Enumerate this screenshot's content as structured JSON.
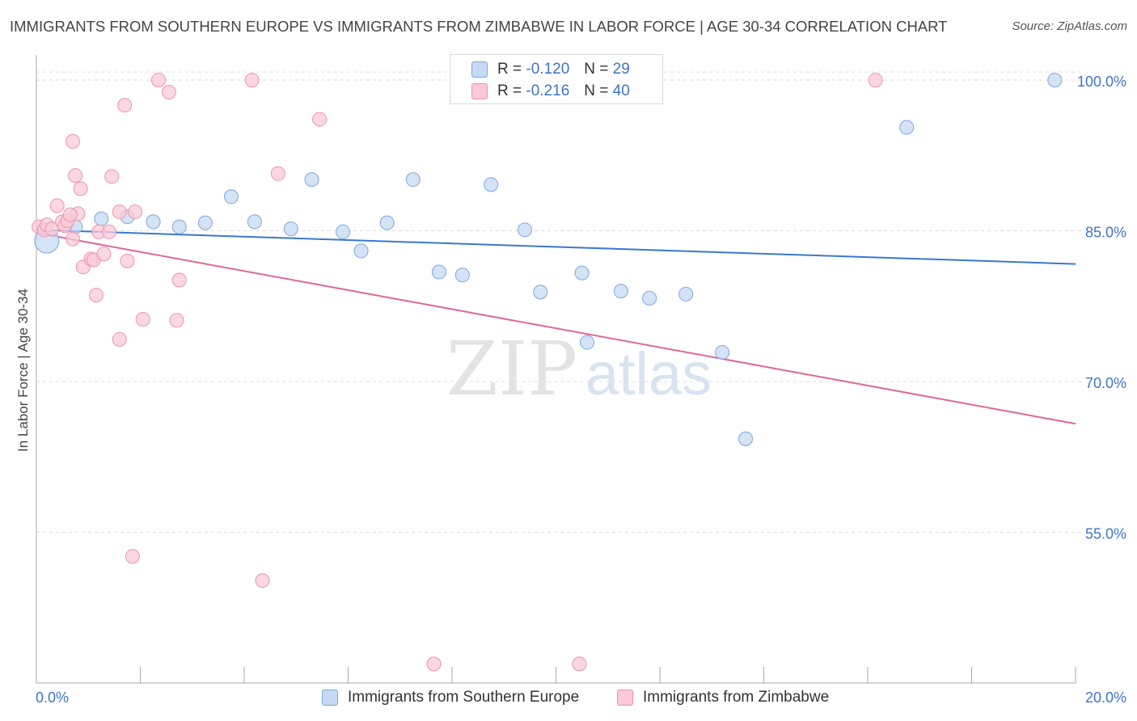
{
  "header": {
    "title": "IMMIGRANTS FROM SOUTHERN EUROPE VS IMMIGRANTS FROM ZIMBABWE IN LABOR FORCE | AGE 30-34 CORRELATION CHART",
    "source": "Source: ZipAtlas.com"
  },
  "legend": {
    "series1": {
      "r_label": "R =",
      "r_value": "-0.120",
      "n_label": "N =",
      "n_value": "29"
    },
    "series2": {
      "r_label": "R =",
      "r_value": "-0.216",
      "n_label": "N =",
      "n_value": "40"
    }
  },
  "watermark": {
    "part1": "ZIP",
    "part2": "atlas"
  },
  "colors": {
    "blue_fill": "#c5d9f3",
    "blue_stroke": "#7ea6e0",
    "blue_line": "#3a78cf",
    "pink_fill": "#f9c9d7",
    "pink_stroke": "#ec93ae",
    "pink_line": "#e0669a",
    "tick_label": "#3e74c9",
    "grid": "#dddddd"
  },
  "chart_data": {
    "type": "scatter",
    "title": "IMMIGRANTS FROM SOUTHERN EUROPE VS IMMIGRANTS FROM ZIMBABWE IN LABOR FORCE | AGE 30-34 CORRELATION CHART",
    "xlabel": "",
    "ylabel": "In Labor Force | Age 30-34",
    "xlim": [
      0,
      20
    ],
    "ylim": [
      40,
      102.5
    ],
    "x_tick_labels": [
      "0.0%",
      "20.0%"
    ],
    "y_ticks": [
      55,
      70,
      85,
      100
    ],
    "y_tick_labels": [
      "55.0%",
      "70.0%",
      "85.0%",
      "100.0%"
    ],
    "grid": true,
    "legend_position": "top-center",
    "series": [
      {
        "name": "Immigrants from Southern Europe",
        "color": "#7ea6e0",
        "trend": {
          "x": [
            0,
            20
          ],
          "y": [
            85.1,
            81.7
          ]
        },
        "points": [
          {
            "x": 0.2,
            "y": 84.0,
            "big": true
          },
          {
            "x": 0.75,
            "y": 85.4
          },
          {
            "x": 1.25,
            "y": 86.2
          },
          {
            "x": 1.75,
            "y": 86.4
          },
          {
            "x": 2.25,
            "y": 85.9
          },
          {
            "x": 2.75,
            "y": 85.4
          },
          {
            "x": 3.25,
            "y": 85.8
          },
          {
            "x": 3.75,
            "y": 88.4
          },
          {
            "x": 4.2,
            "y": 85.9
          },
          {
            "x": 4.9,
            "y": 85.2
          },
          {
            "x": 5.3,
            "y": 90.1
          },
          {
            "x": 5.9,
            "y": 84.9
          },
          {
            "x": 6.25,
            "y": 83.0
          },
          {
            "x": 6.75,
            "y": 85.8
          },
          {
            "x": 7.25,
            "y": 90.1
          },
          {
            "x": 7.75,
            "y": 80.9
          },
          {
            "x": 8.2,
            "y": 80.6
          },
          {
            "x": 8.75,
            "y": 89.6
          },
          {
            "x": 9.4,
            "y": 85.1
          },
          {
            "x": 9.7,
            "y": 78.9
          },
          {
            "x": 10.5,
            "y": 80.8
          },
          {
            "x": 10.6,
            "y": 73.9
          },
          {
            "x": 11.25,
            "y": 79.0
          },
          {
            "x": 11.8,
            "y": 78.3
          },
          {
            "x": 12.5,
            "y": 78.7
          },
          {
            "x": 13.2,
            "y": 72.9
          },
          {
            "x": 13.65,
            "y": 64.3
          },
          {
            "x": 16.75,
            "y": 95.3
          },
          {
            "x": 19.6,
            "y": 100.0
          }
        ]
      },
      {
        "name": "Immigrants from Zimbabwe",
        "color": "#ec93ae",
        "trend": {
          "x": [
            0,
            20
          ],
          "y": [
            84.8,
            65.8
          ]
        },
        "points": [
          {
            "x": 0.05,
            "y": 85.4
          },
          {
            "x": 0.15,
            "y": 85.1
          },
          {
            "x": 0.2,
            "y": 85.6
          },
          {
            "x": 0.3,
            "y": 85.2
          },
          {
            "x": 0.4,
            "y": 87.5
          },
          {
            "x": 0.5,
            "y": 85.9
          },
          {
            "x": 0.55,
            "y": 85.5
          },
          {
            "x": 0.6,
            "y": 86.0
          },
          {
            "x": 0.7,
            "y": 84.2
          },
          {
            "x": 0.8,
            "y": 86.7
          },
          {
            "x": 0.65,
            "y": 86.6
          },
          {
            "x": 0.7,
            "y": 93.9
          },
          {
            "x": 0.75,
            "y": 90.5
          },
          {
            "x": 0.85,
            "y": 89.2
          },
          {
            "x": 0.9,
            "y": 81.4
          },
          {
            "x": 1.05,
            "y": 82.2
          },
          {
            "x": 1.1,
            "y": 82.1
          },
          {
            "x": 1.15,
            "y": 78.6
          },
          {
            "x": 1.2,
            "y": 84.9
          },
          {
            "x": 1.3,
            "y": 82.7
          },
          {
            "x": 1.4,
            "y": 84.9
          },
          {
            "x": 1.45,
            "y": 90.4
          },
          {
            "x": 1.6,
            "y": 86.9
          },
          {
            "x": 1.6,
            "y": 74.2
          },
          {
            "x": 1.7,
            "y": 97.5
          },
          {
            "x": 1.75,
            "y": 82.0
          },
          {
            "x": 1.9,
            "y": 86.9
          },
          {
            "x": 2.05,
            "y": 76.2
          },
          {
            "x": 2.35,
            "y": 100.0
          },
          {
            "x": 2.55,
            "y": 98.8
          },
          {
            "x": 2.7,
            "y": 76.1
          },
          {
            "x": 2.75,
            "y": 80.1
          },
          {
            "x": 1.85,
            "y": 52.6
          },
          {
            "x": 4.15,
            "y": 100.0
          },
          {
            "x": 4.35,
            "y": 50.2
          },
          {
            "x": 4.65,
            "y": 90.7
          },
          {
            "x": 5.45,
            "y": 96.1
          },
          {
            "x": 7.65,
            "y": 41.9
          },
          {
            "x": 10.45,
            "y": 41.9
          },
          {
            "x": 16.15,
            "y": 100.0
          }
        ]
      }
    ]
  }
}
